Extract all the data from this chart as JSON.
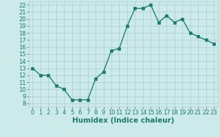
{
  "x": [
    0,
    1,
    2,
    3,
    4,
    5,
    6,
    7,
    8,
    9,
    10,
    11,
    12,
    13,
    14,
    15,
    16,
    17,
    18,
    19,
    20,
    21,
    22,
    23
  ],
  "y": [
    13,
    12,
    12,
    10.5,
    10,
    8.5,
    8.5,
    8.5,
    11.5,
    12.5,
    15.5,
    15.8,
    19,
    21.5,
    21.5,
    22,
    19.5,
    20.5,
    19.5,
    20,
    18,
    17.5,
    17,
    16.5
  ],
  "line_color": "#1a7a6e",
  "marker_color": "#1a7a6e",
  "bg_color": "#cceaea",
  "grid_color": "#aacccc",
  "xlabel": "Humidex (Indice chaleur)",
  "xlim": [
    -0.5,
    23.5
  ],
  "ylim": [
    7.5,
    22.5
  ],
  "yticks": [
    8,
    9,
    10,
    11,
    12,
    13,
    14,
    15,
    16,
    17,
    18,
    19,
    20,
    21,
    22
  ],
  "xticks": [
    0,
    1,
    2,
    3,
    4,
    5,
    6,
    7,
    8,
    9,
    10,
    11,
    12,
    13,
    14,
    15,
    16,
    17,
    18,
    19,
    20,
    21,
    22,
    23
  ],
  "xlabel_fontsize": 7.5,
  "tick_fontsize": 6.0,
  "linewidth": 1.0,
  "markersize": 2.5
}
